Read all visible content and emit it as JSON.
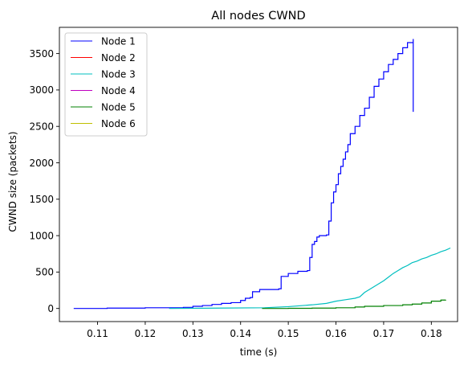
{
  "chart_data": {
    "type": "line",
    "title": "All nodes CWND",
    "xlabel": "time (s)",
    "ylabel": "CWND size (packets)",
    "xlim": [
      0.102,
      0.1855
    ],
    "ylim": [
      -180,
      3860
    ],
    "xticks": [
      0.11,
      0.12,
      0.13,
      0.14,
      0.15,
      0.16,
      0.17,
      0.18
    ],
    "xtick_labels": [
      "0.11",
      "0.12",
      "0.13",
      "0.14",
      "0.15",
      "0.16",
      "0.17",
      "0.18"
    ],
    "yticks": [
      0,
      500,
      1000,
      1500,
      2000,
      2500,
      3000,
      3500
    ],
    "ytick_labels": [
      "0",
      "500",
      "1000",
      "1500",
      "2000",
      "2500",
      "3000",
      "3500"
    ],
    "grid": false,
    "legend_position": "top-left",
    "series": [
      {
        "name": "Node 1",
        "color": "#0000ff",
        "step": true,
        "points": [
          [
            0.105,
            0
          ],
          [
            0.112,
            5
          ],
          [
            0.12,
            10
          ],
          [
            0.128,
            15
          ],
          [
            0.13,
            30
          ],
          [
            0.132,
            40
          ],
          [
            0.134,
            55
          ],
          [
            0.136,
            70
          ],
          [
            0.138,
            80
          ],
          [
            0.14,
            110
          ],
          [
            0.141,
            140
          ],
          [
            0.142,
            150
          ],
          [
            0.1425,
            230
          ],
          [
            0.144,
            260
          ],
          [
            0.148,
            270
          ],
          [
            0.1485,
            440
          ],
          [
            0.15,
            480
          ],
          [
            0.152,
            510
          ],
          [
            0.154,
            520
          ],
          [
            0.1545,
            700
          ],
          [
            0.155,
            880
          ],
          [
            0.1555,
            920
          ],
          [
            0.156,
            980
          ],
          [
            0.1565,
            1000
          ],
          [
            0.158,
            1010
          ],
          [
            0.1585,
            1200
          ],
          [
            0.159,
            1450
          ],
          [
            0.1595,
            1600
          ],
          [
            0.16,
            1700
          ],
          [
            0.1605,
            1850
          ],
          [
            0.161,
            1950
          ],
          [
            0.1615,
            2050
          ],
          [
            0.162,
            2150
          ],
          [
            0.1625,
            2250
          ],
          [
            0.163,
            2400
          ],
          [
            0.164,
            2500
          ],
          [
            0.165,
            2650
          ],
          [
            0.166,
            2750
          ],
          [
            0.167,
            2900
          ],
          [
            0.168,
            3050
          ],
          [
            0.169,
            3150
          ],
          [
            0.17,
            3250
          ],
          [
            0.171,
            3350
          ],
          [
            0.172,
            3420
          ],
          [
            0.173,
            3500
          ],
          [
            0.174,
            3580
          ],
          [
            0.175,
            3650
          ],
          [
            0.1762,
            3700
          ],
          [
            0.1762,
            2700
          ]
        ]
      },
      {
        "name": "Node 2",
        "color": "#ff0000",
        "step": false,
        "points": []
      },
      {
        "name": "Node 3",
        "color": "#00bfbf",
        "step": false,
        "points": [
          [
            0.125,
            0
          ],
          [
            0.135,
            5
          ],
          [
            0.145,
            10
          ],
          [
            0.15,
            25
          ],
          [
            0.155,
            50
          ],
          [
            0.158,
            70
          ],
          [
            0.16,
            100
          ],
          [
            0.162,
            120
          ],
          [
            0.164,
            140
          ],
          [
            0.165,
            160
          ],
          [
            0.166,
            220
          ],
          [
            0.167,
            260
          ],
          [
            0.168,
            300
          ],
          [
            0.169,
            340
          ],
          [
            0.17,
            380
          ],
          [
            0.171,
            430
          ],
          [
            0.172,
            480
          ],
          [
            0.173,
            520
          ],
          [
            0.174,
            560
          ],
          [
            0.175,
            590
          ],
          [
            0.176,
            630
          ],
          [
            0.177,
            650
          ],
          [
            0.178,
            680
          ],
          [
            0.179,
            700
          ],
          [
            0.18,
            730
          ],
          [
            0.181,
            750
          ],
          [
            0.182,
            780
          ],
          [
            0.183,
            800
          ],
          [
            0.184,
            830
          ]
        ]
      },
      {
        "name": "Node 4",
        "color": "#bf00bf",
        "step": false,
        "points": []
      },
      {
        "name": "Node 5",
        "color": "#008000",
        "step": true,
        "points": [
          [
            0.1445,
            0
          ],
          [
            0.15,
            2
          ],
          [
            0.155,
            5
          ],
          [
            0.16,
            10
          ],
          [
            0.164,
            20
          ],
          [
            0.166,
            30
          ],
          [
            0.17,
            40
          ],
          [
            0.174,
            50
          ],
          [
            0.176,
            60
          ],
          [
            0.178,
            75
          ],
          [
            0.18,
            100
          ],
          [
            0.182,
            115
          ],
          [
            0.183,
            120
          ]
        ]
      },
      {
        "name": "Node 6",
        "color": "#bfbf00",
        "step": false,
        "points": []
      }
    ]
  }
}
